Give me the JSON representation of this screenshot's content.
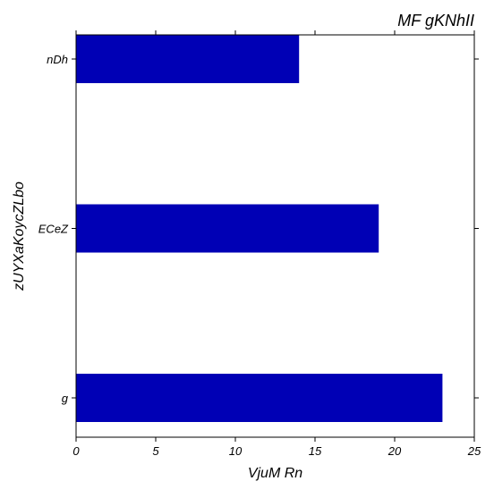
{
  "chart_data": {
    "type": "bar",
    "orientation": "horizontal",
    "title": "MF gKNhII",
    "xlabel": "VjuM Rn",
    "ylabel": "zUYXaKoycZLbo",
    "categories": [
      "nDh",
      "ECeZ",
      "g"
    ],
    "values": [
      14,
      19,
      23
    ],
    "xlim": [
      0,
      25
    ],
    "xticks": [
      "0",
      "5",
      "10",
      "15",
      "20",
      "25"
    ],
    "grid": false,
    "bar_color": "#0000b5"
  }
}
